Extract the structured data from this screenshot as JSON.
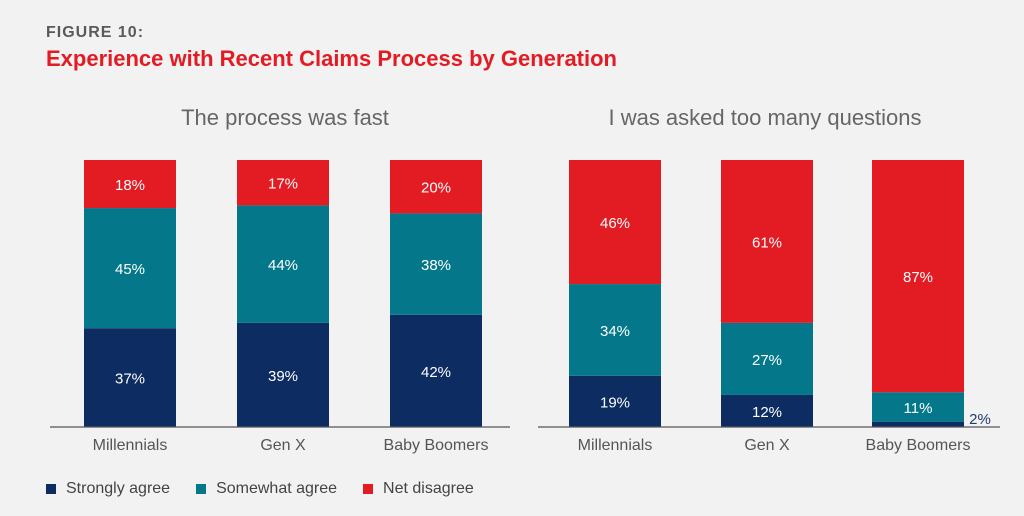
{
  "figure_label": "FIGURE 10:",
  "figure_title": "Experience with Recent Claims Process by Generation",
  "colors": {
    "strongly_agree": "#0d2c62",
    "somewhat_agree": "#04788a",
    "net_disagree": "#e31b23"
  },
  "legend": [
    {
      "label": "Strongly agree",
      "color": "#0d2c62"
    },
    {
      "label": "Somewhat agree",
      "color": "#04788a"
    },
    {
      "label": "Net disagree",
      "color": "#e31b23"
    }
  ],
  "chart_data": [
    {
      "type": "bar",
      "stacked": true,
      "title": "The process was fast",
      "categories": [
        "Millennials",
        "Gen X",
        "Baby Boomers"
      ],
      "series": [
        {
          "name": "Strongly agree",
          "values": [
            37,
            39,
            42
          ]
        },
        {
          "name": "Somewhat agree",
          "values": [
            45,
            44,
            38
          ]
        },
        {
          "name": "Net disagree",
          "values": [
            18,
            17,
            20
          ]
        }
      ],
      "value_labels": [
        [
          "37%",
          "39%",
          "42%"
        ],
        [
          "45%",
          "44%",
          "38%"
        ],
        [
          "18%",
          "17%",
          "20%"
        ]
      ],
      "ylim": [
        0,
        100
      ]
    },
    {
      "type": "bar",
      "stacked": true,
      "title": "I was asked too many questions",
      "categories": [
        "Millennials",
        "Gen X",
        "Baby Boomers"
      ],
      "series": [
        {
          "name": "Strongly agree",
          "values": [
            19,
            12,
            2
          ]
        },
        {
          "name": "Somewhat agree",
          "values": [
            34,
            27,
            11
          ]
        },
        {
          "name": "Net disagree",
          "values": [
            46,
            61,
            87
          ]
        }
      ],
      "value_labels": [
        [
          "19%",
          "12%",
          "2%"
        ],
        [
          "34%",
          "27%",
          "11%"
        ],
        [
          "46%",
          "61%",
          "87%"
        ]
      ],
      "ylim": [
        0,
        100
      ]
    }
  ]
}
